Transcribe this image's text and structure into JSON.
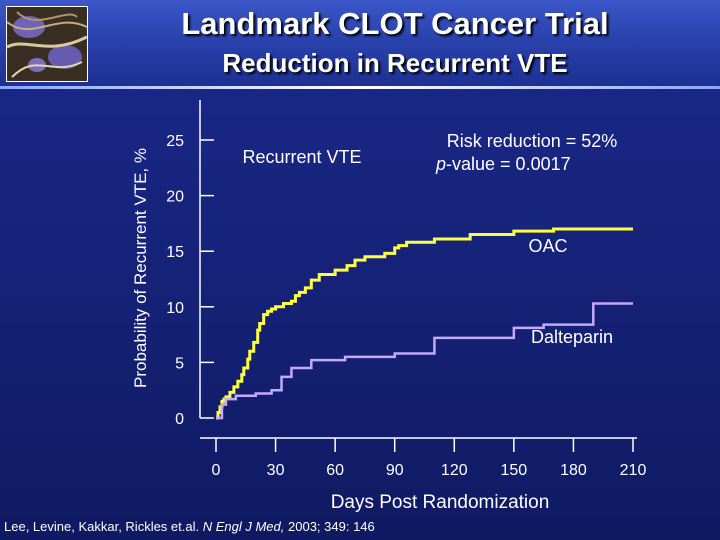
{
  "header": {
    "title": "Landmark CLOT Cancer Trial",
    "subtitle": "Reduction in Recurrent VTE"
  },
  "reference": {
    "authors": "Lee, Levine, Kakkar, Rickles et.al.",
    "journal": "N Engl J Med,",
    "citation": "2003; 349: 146"
  },
  "colors": {
    "oac": "#ffff44",
    "dalteparin": "#c6a8ff",
    "axis": "#ffffff"
  },
  "chart_data": {
    "type": "line",
    "title": "Reduction in Recurrent VTE",
    "xlabel": "Days Post Randomization",
    "ylabel": "Probability of Recurrent VTE, %",
    "xlim": [
      0,
      210
    ],
    "ylim": [
      0,
      25
    ],
    "xticks": [
      0,
      30,
      60,
      90,
      120,
      150,
      180,
      210
    ],
    "yticks": [
      0,
      5,
      10,
      15,
      20,
      25
    ],
    "annotations": {
      "panel_label": "Recurrent VTE",
      "risk_reduction": "Risk reduction = 52%",
      "p_label": "p",
      "p_value": "-value = 0.0017"
    },
    "series": [
      {
        "name": "OAC",
        "color": "#ffff44",
        "points": [
          [
            0,
            0
          ],
          [
            1,
            0.5
          ],
          [
            2,
            1
          ],
          [
            3,
            1.5
          ],
          [
            4,
            1.7
          ],
          [
            5,
            1.9
          ],
          [
            7,
            2.3
          ],
          [
            9,
            2.8
          ],
          [
            11,
            3.3
          ],
          [
            13,
            3.9
          ],
          [
            14,
            4.5
          ],
          [
            16,
            5.3
          ],
          [
            17,
            6
          ],
          [
            19,
            6.8
          ],
          [
            21,
            7.9
          ],
          [
            22,
            8.5
          ],
          [
            24,
            9.3
          ],
          [
            26,
            9.6
          ],
          [
            28,
            9.8
          ],
          [
            30,
            10
          ],
          [
            34,
            10.3
          ],
          [
            38,
            10.5
          ],
          [
            40,
            11
          ],
          [
            42,
            11.3
          ],
          [
            45,
            11.7
          ],
          [
            48,
            12.4
          ],
          [
            52,
            12.9
          ],
          [
            60,
            13.3
          ],
          [
            66,
            13.7
          ],
          [
            70,
            14.2
          ],
          [
            75,
            14.5
          ],
          [
            85,
            14.8
          ],
          [
            90,
            15.3
          ],
          [
            92,
            15.5
          ],
          [
            96,
            15.8
          ],
          [
            110,
            16.1
          ],
          [
            128,
            16.5
          ],
          [
            150,
            16.8
          ],
          [
            170,
            17
          ],
          [
            210,
            17
          ]
        ]
      },
      {
        "name": "Dalteparin",
        "color": "#c6a8ff",
        "points": [
          [
            0,
            0
          ],
          [
            3,
            1.2
          ],
          [
            5,
            1.7
          ],
          [
            10,
            2
          ],
          [
            20,
            2.2
          ],
          [
            28,
            2.5
          ],
          [
            33,
            3.7
          ],
          [
            38,
            4.5
          ],
          [
            48,
            5.2
          ],
          [
            65,
            5.5
          ],
          [
            90,
            5.8
          ],
          [
            110,
            7.2
          ],
          [
            150,
            8.1
          ],
          [
            162,
            8.1
          ],
          [
            165,
            8.4
          ],
          [
            188,
            8.4
          ],
          [
            190,
            10.3
          ],
          [
            210,
            10.3
          ]
        ]
      }
    ],
    "legend": [
      {
        "name": "OAC",
        "position": "upper-right"
      },
      {
        "name": "Dalteparin",
        "position": "right"
      }
    ]
  }
}
